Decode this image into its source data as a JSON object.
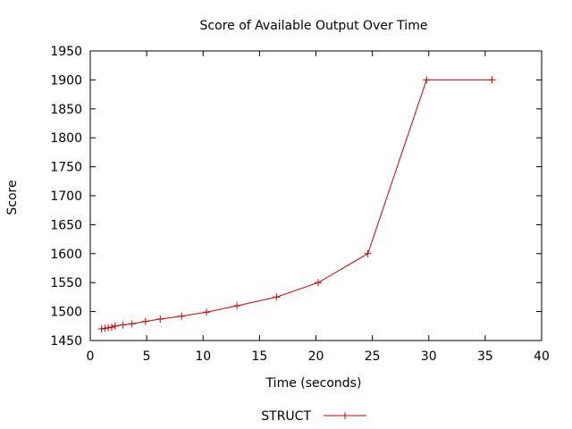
{
  "chart_data": {
    "type": "line",
    "title": "Score of Available Output Over Time",
    "xlabel": "Time (seconds)",
    "ylabel": "Score",
    "xlim": [
      0,
      40
    ],
    "ylim": [
      1450,
      1950
    ],
    "xticks": [
      0,
      5,
      10,
      15,
      20,
      25,
      30,
      35,
      40
    ],
    "yticks": [
      1450,
      1500,
      1550,
      1600,
      1650,
      1700,
      1750,
      1800,
      1850,
      1900,
      1950
    ],
    "grid": false,
    "legend": "bottom-center",
    "series": [
      {
        "name": "STRUCT",
        "color": "#cc0000",
        "marker": "plus",
        "x": [
          1.0,
          1.3,
          1.6,
          1.9,
          2.2,
          2.9,
          3.7,
          4.9,
          6.2,
          8.1,
          10.3,
          13.0,
          16.5,
          20.2,
          24.6,
          29.8,
          35.6
        ],
        "y": [
          1470,
          1471,
          1472,
          1473,
          1475,
          1477,
          1479,
          1483,
          1487,
          1492,
          1499,
          1510,
          1525,
          1550,
          1600,
          1900,
          1900
        ]
      }
    ]
  }
}
